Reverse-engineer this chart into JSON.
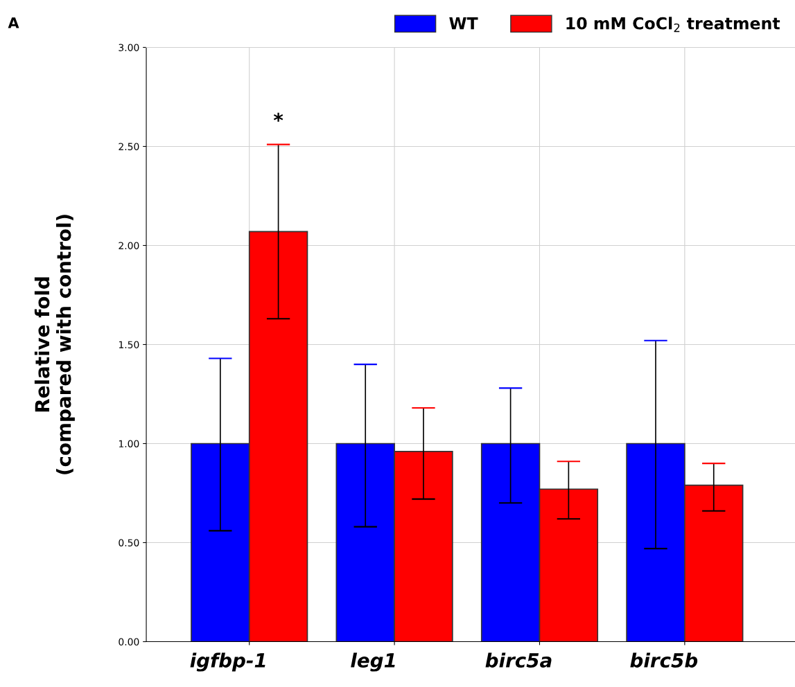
{
  "chart_data": {
    "type": "bar",
    "ylabel": "Relative fold\n(compared with control)",
    "categories": [
      "igfbp-1",
      "leg1",
      "birc5a",
      "birc5b"
    ],
    "series": [
      {
        "name": "WT",
        "color": "#0000ff",
        "values": [
          1.0,
          1.0,
          1.0,
          1.0
        ],
        "errors": [
          [
            0.56,
            1.43
          ],
          [
            0.58,
            1.4
          ],
          [
            0.7,
            1.28
          ],
          [
            0.47,
            1.52
          ]
        ]
      },
      {
        "name": "10 mM CoCl$_{2}$ treatment",
        "color": "#ff0000",
        "values": [
          2.07,
          0.96,
          0.77,
          0.79
        ],
        "errors": [
          [
            1.63,
            2.51
          ],
          [
            0.72,
            1.18
          ],
          [
            0.62,
            0.91
          ],
          [
            0.66,
            0.9
          ]
        ]
      }
    ],
    "ylim": [
      0,
      3
    ],
    "yticks": [
      {
        "value": 0,
        "label": "0.00"
      },
      {
        "value": 0.5,
        "label": "0.50"
      },
      {
        "value": 1,
        "label": "1.00"
      },
      {
        "value": 1.5,
        "label": "1.50"
      },
      {
        "value": 2,
        "label": "2.00"
      },
      {
        "value": 2.5,
        "label": "2.50"
      },
      {
        "value": 3,
        "label": "3.00"
      }
    ],
    "grid": true,
    "legend": "top right",
    "annotations": [
      "A",
      "*"
    ]
  }
}
